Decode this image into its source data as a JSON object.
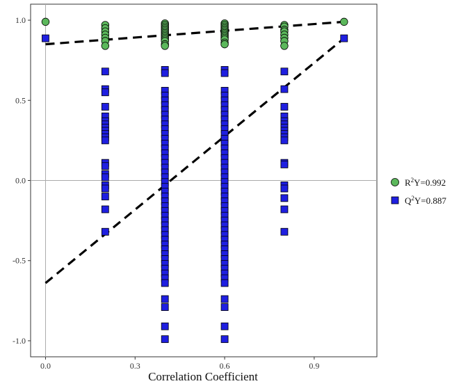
{
  "chart_data": {
    "type": "scatter",
    "xlabel": "Correlation Coefficient",
    "ylabel": "",
    "xlim": [
      -0.05,
      1.11
    ],
    "ylim": [
      -1.1,
      1.1
    ],
    "x_ticks": [
      0.0,
      0.3,
      0.6,
      0.9
    ],
    "x_tick_labels": [
      "0.0",
      "0.3",
      "0.6",
      "0.9"
    ],
    "y_ticks": [
      -1.0,
      -0.5,
      0.0,
      0.5,
      1.0
    ],
    "y_tick_labels": [
      "-1.0",
      "-0.5",
      "0.0",
      "0.5",
      "1.0"
    ],
    "reference_lines": {
      "horizontal": 0,
      "vertical": 0
    },
    "grid": false,
    "legend_position": "right",
    "series": [
      {
        "name": "R2Y",
        "legend_label": {
          "prefix": "R",
          "superscript": "2",
          "suffix": "Y=0.992"
        },
        "marker": "circle",
        "color": "#5cb85c",
        "points": [
          [
            0.0,
            0.99
          ],
          [
            1.0,
            0.99
          ],
          [
            0.2,
            0.97
          ],
          [
            0.2,
            0.95
          ],
          [
            0.2,
            0.93
          ],
          [
            0.2,
            0.91
          ],
          [
            0.2,
            0.89
          ],
          [
            0.2,
            0.87
          ],
          [
            0.2,
            0.84
          ],
          [
            0.4,
            0.98
          ],
          [
            0.4,
            0.97
          ],
          [
            0.4,
            0.96
          ],
          [
            0.4,
            0.95
          ],
          [
            0.4,
            0.94
          ],
          [
            0.4,
            0.93
          ],
          [
            0.4,
            0.92
          ],
          [
            0.4,
            0.91
          ],
          [
            0.4,
            0.9
          ],
          [
            0.4,
            0.89
          ],
          [
            0.4,
            0.88
          ],
          [
            0.4,
            0.87
          ],
          [
            0.4,
            0.85
          ],
          [
            0.4,
            0.84
          ],
          [
            0.6,
            0.98
          ],
          [
            0.6,
            0.97
          ],
          [
            0.6,
            0.96
          ],
          [
            0.6,
            0.95
          ],
          [
            0.6,
            0.94
          ],
          [
            0.6,
            0.93
          ],
          [
            0.6,
            0.92
          ],
          [
            0.6,
            0.91
          ],
          [
            0.6,
            0.9
          ],
          [
            0.6,
            0.89
          ],
          [
            0.6,
            0.88
          ],
          [
            0.6,
            0.86
          ],
          [
            0.6,
            0.85
          ],
          [
            0.8,
            0.97
          ],
          [
            0.8,
            0.96
          ],
          [
            0.8,
            0.94
          ],
          [
            0.8,
            0.93
          ],
          [
            0.8,
            0.91
          ],
          [
            0.8,
            0.89
          ],
          [
            0.8,
            0.87
          ],
          [
            0.8,
            0.84
          ]
        ],
        "trend_line": [
          [
            0.0,
            0.85
          ],
          [
            1.0,
            0.99
          ]
        ]
      },
      {
        "name": "Q2Y",
        "legend_label": {
          "prefix": "Q",
          "superscript": "2",
          "suffix": "Y=0.887"
        },
        "marker": "square",
        "color": "#1f1fe0",
        "points": [
          [
            0.0,
            0.887
          ],
          [
            1.0,
            0.887
          ],
          [
            0.2,
            0.68
          ],
          [
            0.2,
            0.57
          ],
          [
            0.2,
            0.55
          ],
          [
            0.2,
            0.46
          ],
          [
            0.2,
            0.4
          ],
          [
            0.2,
            0.37
          ],
          [
            0.2,
            0.35
          ],
          [
            0.2,
            0.33
          ],
          [
            0.2,
            0.31
          ],
          [
            0.2,
            0.29
          ],
          [
            0.2,
            0.27
          ],
          [
            0.2,
            0.25
          ],
          [
            0.2,
            0.11
          ],
          [
            0.2,
            0.09
          ],
          [
            0.2,
            0.04
          ],
          [
            0.2,
            0.02
          ],
          [
            0.2,
            -0.03
          ],
          [
            0.2,
            -0.05
          ],
          [
            0.2,
            -0.1
          ],
          [
            0.2,
            -0.18
          ],
          [
            0.2,
            -0.32
          ],
          [
            0.4,
            0.69
          ],
          [
            0.4,
            0.67
          ],
          [
            0.4,
            0.56
          ],
          [
            0.4,
            0.53
          ],
          [
            0.4,
            0.5
          ],
          [
            0.4,
            0.47
          ],
          [
            0.4,
            0.44
          ],
          [
            0.4,
            0.41
          ],
          [
            0.4,
            0.38
          ],
          [
            0.4,
            0.35
          ],
          [
            0.4,
            0.32
          ],
          [
            0.4,
            0.29
          ],
          [
            0.4,
            0.26
          ],
          [
            0.4,
            0.23
          ],
          [
            0.4,
            0.2
          ],
          [
            0.4,
            0.17
          ],
          [
            0.4,
            0.14
          ],
          [
            0.4,
            0.11
          ],
          [
            0.4,
            0.08
          ],
          [
            0.4,
            0.05
          ],
          [
            0.4,
            0.02
          ],
          [
            0.4,
            -0.01
          ],
          [
            0.4,
            -0.04
          ],
          [
            0.4,
            -0.07
          ],
          [
            0.4,
            -0.1
          ],
          [
            0.4,
            -0.13
          ],
          [
            0.4,
            -0.16
          ],
          [
            0.4,
            -0.19
          ],
          [
            0.4,
            -0.22
          ],
          [
            0.4,
            -0.25
          ],
          [
            0.4,
            -0.28
          ],
          [
            0.4,
            -0.31
          ],
          [
            0.4,
            -0.34
          ],
          [
            0.4,
            -0.37
          ],
          [
            0.4,
            -0.4
          ],
          [
            0.4,
            -0.43
          ],
          [
            0.4,
            -0.46
          ],
          [
            0.4,
            -0.49
          ],
          [
            0.4,
            -0.52
          ],
          [
            0.4,
            -0.55
          ],
          [
            0.4,
            -0.58
          ],
          [
            0.4,
            -0.61
          ],
          [
            0.4,
            -0.64
          ],
          [
            0.4,
            -0.74
          ],
          [
            0.4,
            -0.79
          ],
          [
            0.4,
            -0.91
          ],
          [
            0.4,
            -0.99
          ],
          [
            0.6,
            0.69
          ],
          [
            0.6,
            0.67
          ],
          [
            0.6,
            0.56
          ],
          [
            0.6,
            0.53
          ],
          [
            0.6,
            0.5
          ],
          [
            0.6,
            0.47
          ],
          [
            0.6,
            0.44
          ],
          [
            0.6,
            0.41
          ],
          [
            0.6,
            0.38
          ],
          [
            0.6,
            0.35
          ],
          [
            0.6,
            0.32
          ],
          [
            0.6,
            0.29
          ],
          [
            0.6,
            0.26
          ],
          [
            0.6,
            0.23
          ],
          [
            0.6,
            0.2
          ],
          [
            0.6,
            0.17
          ],
          [
            0.6,
            0.14
          ],
          [
            0.6,
            0.11
          ],
          [
            0.6,
            0.08
          ],
          [
            0.6,
            0.05
          ],
          [
            0.6,
            0.02
          ],
          [
            0.6,
            -0.01
          ],
          [
            0.6,
            -0.04
          ],
          [
            0.6,
            -0.07
          ],
          [
            0.6,
            -0.1
          ],
          [
            0.6,
            -0.13
          ],
          [
            0.6,
            -0.16
          ],
          [
            0.6,
            -0.19
          ],
          [
            0.6,
            -0.22
          ],
          [
            0.6,
            -0.25
          ],
          [
            0.6,
            -0.28
          ],
          [
            0.6,
            -0.31
          ],
          [
            0.6,
            -0.34
          ],
          [
            0.6,
            -0.37
          ],
          [
            0.6,
            -0.4
          ],
          [
            0.6,
            -0.43
          ],
          [
            0.6,
            -0.46
          ],
          [
            0.6,
            -0.49
          ],
          [
            0.6,
            -0.52
          ],
          [
            0.6,
            -0.55
          ],
          [
            0.6,
            -0.58
          ],
          [
            0.6,
            -0.61
          ],
          [
            0.6,
            -0.64
          ],
          [
            0.6,
            -0.74
          ],
          [
            0.6,
            -0.79
          ],
          [
            0.6,
            -0.91
          ],
          [
            0.6,
            -0.99
          ],
          [
            0.8,
            0.68
          ],
          [
            0.8,
            0.57
          ],
          [
            0.8,
            0.46
          ],
          [
            0.8,
            0.4
          ],
          [
            0.8,
            0.37
          ],
          [
            0.8,
            0.35
          ],
          [
            0.8,
            0.33
          ],
          [
            0.8,
            0.31
          ],
          [
            0.8,
            0.29
          ],
          [
            0.8,
            0.27
          ],
          [
            0.8,
            0.25
          ],
          [
            0.8,
            0.11
          ],
          [
            0.8,
            0.1
          ],
          [
            0.8,
            -0.03
          ],
          [
            0.8,
            -0.05
          ],
          [
            0.8,
            -0.11
          ],
          [
            0.8,
            -0.18
          ],
          [
            0.8,
            -0.32
          ]
        ],
        "trend_line": [
          [
            0.0,
            -0.64
          ],
          [
            1.0,
            0.887
          ]
        ]
      }
    ]
  }
}
